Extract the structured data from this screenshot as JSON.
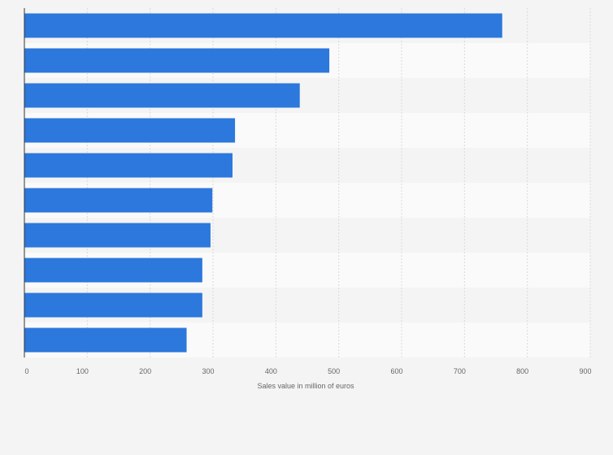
{
  "chart_data": {
    "type": "bar",
    "orientation": "horizontal",
    "categories": [
      "",
      "",
      "",
      "",
      "",
      "",
      "",
      "",
      "",
      ""
    ],
    "values": [
      760,
      485,
      438,
      335,
      331,
      299,
      296,
      283,
      283,
      258
    ],
    "title": "",
    "xlabel": "Sales value in million of euros",
    "ylabel": "",
    "xlim": [
      0,
      900
    ],
    "xticks": [
      0,
      100,
      200,
      300,
      400,
      500,
      600,
      700,
      800,
      900
    ],
    "grid": true,
    "bar_color": "#2c78dc",
    "band_colors": [
      "#f4f4f4",
      "#fafafa"
    ],
    "gridline_color": "#dadada"
  }
}
